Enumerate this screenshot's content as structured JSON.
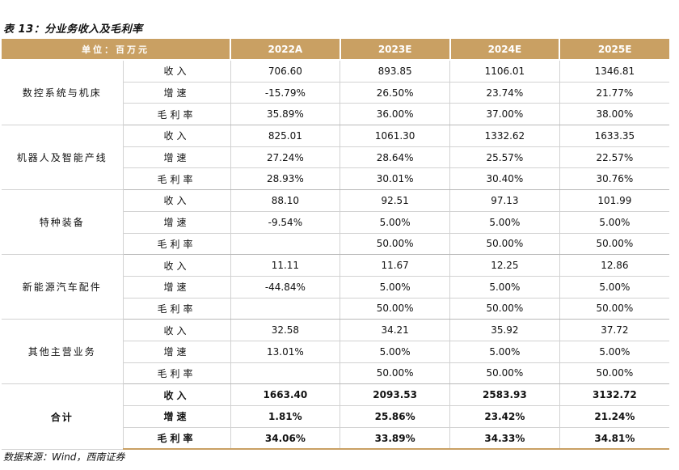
{
  "title": "表 13：分业务收入及毛利率",
  "source": "数据来源：Wind，西南证券",
  "header": {
    "unit": "单位：百万元",
    "years": [
      "2022A",
      "2023E",
      "2024E",
      "2025E"
    ]
  },
  "groups": [
    {
      "name": "数控系统与机床",
      "rows": [
        {
          "metric": "收入",
          "values": [
            "706.60",
            "893.85",
            "1106.01",
            "1346.81"
          ]
        },
        {
          "metric": "增速",
          "values": [
            "-15.79%",
            "26.50%",
            "23.74%",
            "21.77%"
          ]
        },
        {
          "metric": "毛利率",
          "values": [
            "35.89%",
            "36.00%",
            "37.00%",
            "38.00%"
          ]
        }
      ]
    },
    {
      "name": "机器人及智能产线",
      "rows": [
        {
          "metric": "收入",
          "values": [
            "825.01",
            "1061.30",
            "1332.62",
            "1633.35"
          ]
        },
        {
          "metric": "增速",
          "values": [
            "27.24%",
            "28.64%",
            "25.57%",
            "22.57%"
          ]
        },
        {
          "metric": "毛利率",
          "values": [
            "28.93%",
            "30.01%",
            "30.40%",
            "30.76%"
          ]
        }
      ]
    },
    {
      "name": "特种装备",
      "rows": [
        {
          "metric": "收入",
          "values": [
            "88.10",
            "92.51",
            "97.13",
            "101.99"
          ]
        },
        {
          "metric": "增速",
          "values": [
            "-9.54%",
            "5.00%",
            "5.00%",
            "5.00%"
          ]
        },
        {
          "metric": "毛利率",
          "values": [
            "",
            "50.00%",
            "50.00%",
            "50.00%"
          ]
        }
      ]
    },
    {
      "name": "新能源汽车配件",
      "rows": [
        {
          "metric": "收入",
          "values": [
            "11.11",
            "11.67",
            "12.25",
            "12.86"
          ]
        },
        {
          "metric": "增速",
          "values": [
            "-44.84%",
            "5.00%",
            "5.00%",
            "5.00%"
          ]
        },
        {
          "metric": "毛利率",
          "values": [
            "",
            "50.00%",
            "50.00%",
            "50.00%"
          ]
        }
      ]
    },
    {
      "name": "其他主营业务",
      "rows": [
        {
          "metric": "收入",
          "values": [
            "32.58",
            "34.21",
            "35.92",
            "37.72"
          ]
        },
        {
          "metric": "增速",
          "values": [
            "13.01%",
            "5.00%",
            "5.00%",
            "5.00%"
          ]
        },
        {
          "metric": "毛利率",
          "values": [
            "",
            "50.00%",
            "50.00%",
            "50.00%"
          ]
        }
      ]
    },
    {
      "name": "合计",
      "bold": true,
      "rows": [
        {
          "metric": "收入",
          "values": [
            "1663.40",
            "2093.53",
            "2583.93",
            "3132.72"
          ]
        },
        {
          "metric": "增速",
          "values": [
            "1.81%",
            "25.86%",
            "23.42%",
            "21.24%"
          ]
        },
        {
          "metric": "毛利率",
          "values": [
            "34.06%",
            "33.89%",
            "34.33%",
            "34.81%"
          ]
        }
      ]
    }
  ],
  "colors": {
    "header_bg": "#c9a063",
    "grid": "#d2d2d2"
  }
}
